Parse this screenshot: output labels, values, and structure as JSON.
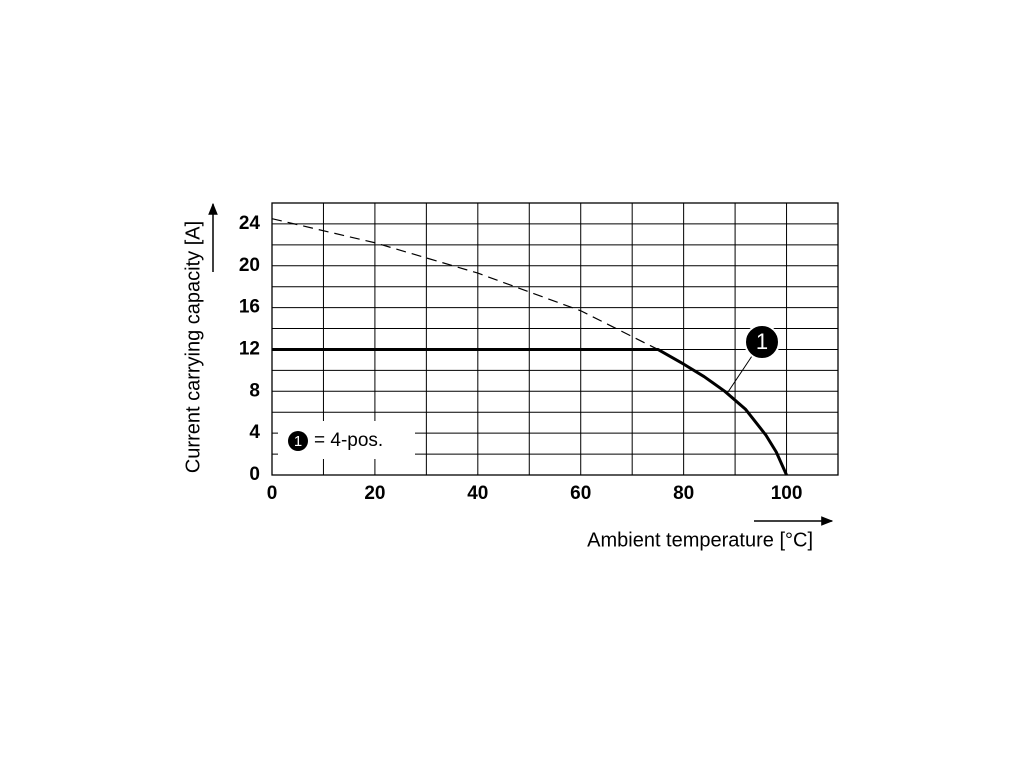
{
  "chart_data": {
    "type": "line",
    "x_label": "Ambient temperature [°C]",
    "y_label": "Current carrying capacity [A]",
    "xlim": [
      0,
      110
    ],
    "ylim": [
      0,
      26
    ],
    "xticks": [
      0,
      20,
      40,
      60,
      80,
      100
    ],
    "yticks": [
      0,
      4,
      8,
      12,
      16,
      20,
      24
    ],
    "x_minor_grid": [
      10,
      30,
      50,
      70,
      90,
      110
    ],
    "y_minor_grid": [
      2,
      6,
      10,
      14,
      18,
      22,
      26
    ],
    "grid": true,
    "series": [
      {
        "name": "= 4-pos.",
        "marker_label": "1",
        "color": "#000000",
        "style": "solid",
        "x": [
          0,
          75,
          80,
          84,
          88,
          92,
          96,
          98,
          100
        ],
        "values": [
          12,
          12,
          10.6,
          9.4,
          8,
          6.3,
          3.8,
          2.2,
          0
        ]
      },
      {
        "color": "#000000",
        "style": "dashed",
        "x": [
          0,
          20,
          40,
          60,
          75
        ],
        "values": [
          24.5,
          22.2,
          19.3,
          15.7,
          12
        ]
      }
    ]
  }
}
